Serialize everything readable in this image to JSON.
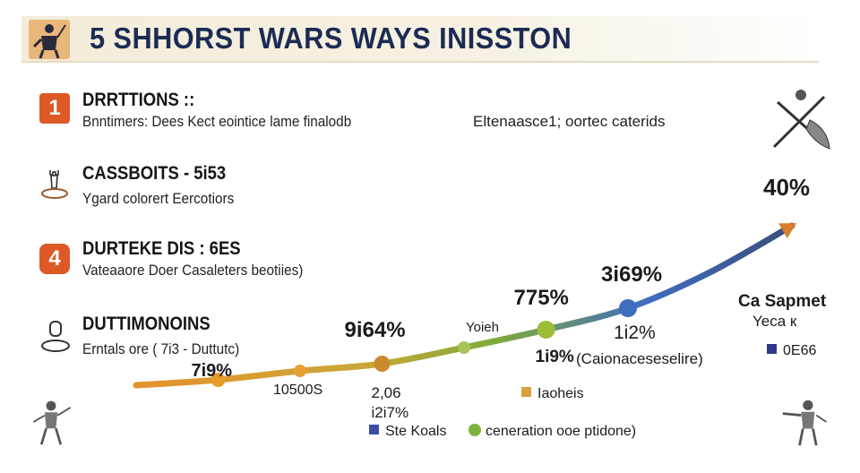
{
  "title": "5 SHHORST WARS WAYS INISSTON",
  "sections": [
    {
      "badge": "1",
      "badge_color": "#dd5a26",
      "title": "DRRTTIONS  ::",
      "subtitle": "Bnntimers: Dees Kect eointice lame finalodb"
    },
    {
      "badge": "",
      "icon": "rook-icon",
      "title": "CASSBOITS  - 5i53",
      "subtitle": "Ygard colorert Eercotiors"
    },
    {
      "badge": "4",
      "badge_color": "#dd5a26",
      "title": "DURTEKE DIS  : 6ES",
      "subtitle": "Vateaaore Doer Casaleters beotiies)"
    },
    {
      "badge": "",
      "icon": "ring-icon",
      "title": "DUTTIMONOINS",
      "subtitle": "Erntals ore  ( 7i3 - Duttutc)"
    }
  ],
  "side_note": "Eltenaasce1;  oortec caterids",
  "chart_data": {
    "type": "line",
    "x": [
      0,
      1,
      2,
      3,
      4,
      5,
      6,
      7,
      8
    ],
    "values": [
      5,
      8,
      13,
      17,
      26,
      36,
      48,
      68,
      94
    ],
    "ylim": [
      0,
      100
    ],
    "point_labels": [
      "",
      "7i9%",
      "10500S",
      "9i64%",
      "Yoieh",
      "775%",
      "3i69%",
      "",
      "40%"
    ],
    "annotations": [
      {
        "at": 3,
        "text": "2,06"
      },
      {
        "at": 3,
        "text": "i2i7%"
      },
      {
        "at": 5,
        "text": "1i9%"
      },
      {
        "at": 6,
        "text": "1i2%"
      },
      {
        "at": 6,
        "text": "(Caionaceseselire)"
      },
      {
        "at": 8,
        "text": "Ca Sapmet"
      },
      {
        "at": 8,
        "text": "Yeca к"
      }
    ],
    "legend": [
      {
        "label": "Ste Koals",
        "color": "#3a4ea8",
        "marker": "square"
      },
      {
        "label": "ceneration ooe ptidone)",
        "color": "#7fb13f",
        "marker": "circle"
      },
      {
        "label": "Iaoheis",
        "color": "#dca03a",
        "marker": "square"
      },
      {
        "label": "0E66",
        "color": "#2d3a8a",
        "marker": "square"
      }
    ],
    "colors": {
      "orange": "#e3922c",
      "olive": "#c9a738",
      "green": "#7eaa3a",
      "blue": "#3f6dc0",
      "arrow": "#d97c2c"
    }
  }
}
